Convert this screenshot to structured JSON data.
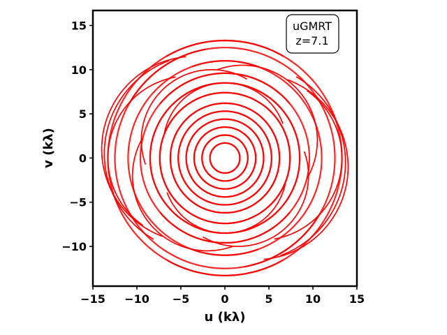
{
  "chart_data": {
    "type": "scatter",
    "title": "",
    "xlabel": "u (kλ)",
    "ylabel": "v (kλ)",
    "xlim": [
      -15,
      15
    ],
    "ylim": [
      -14.5,
      16.7
    ],
    "xticks": [
      -15,
      -10,
      -5,
      0,
      5,
      10,
      15
    ],
    "xtick_labels": [
      "−15",
      "−10",
      "−5",
      "0",
      "5",
      "10",
      "15"
    ],
    "yticks": [
      -10,
      -5,
      0,
      5,
      10,
      15
    ],
    "ytick_labels": [
      "−10",
      "−5",
      "0",
      "5",
      "10",
      "15"
    ],
    "grid": false,
    "color": "#ff0000",
    "annotation": {
      "line1": "uGMRT",
      "line2": "z=7.1",
      "position": "top-right"
    },
    "series": [
      {
        "description": "uv-coverage tracks (elliptical arcs, mirrored about origin)",
        "tracks": [
          {
            "center": [
              0,
              0
            ],
            "radius": 13.3,
            "start_deg": 60,
            "end_deg": 300
          },
          {
            "center": [
              0,
              0
            ],
            "radius": 12.5,
            "start_deg": 100,
            "end_deg": 330
          },
          {
            "center": [
              0,
              0
            ],
            "radius": 11.0,
            "start_deg": 70,
            "end_deg": 290
          },
          {
            "center": [
              0,
              0
            ],
            "radius": 9.6,
            "start_deg": 40,
            "end_deg": 320
          },
          {
            "center": [
              0,
              0
            ],
            "radius": 8.5,
            "start_deg": 0,
            "end_deg": 360
          },
          {
            "center": [
              0,
              0
            ],
            "radius": 7.4,
            "start_deg": 0,
            "end_deg": 360
          },
          {
            "center": [
              0,
              0
            ],
            "radius": 6.2,
            "start_deg": 0,
            "end_deg": 360
          },
          {
            "center": [
              0,
              0
            ],
            "radius": 5.3,
            "start_deg": 0,
            "end_deg": 360
          },
          {
            "center": [
              0,
              0
            ],
            "radius": 4.4,
            "start_deg": 0,
            "end_deg": 360
          },
          {
            "center": [
              0,
              0
            ],
            "radius": 3.5,
            "start_deg": 0,
            "end_deg": 360
          },
          {
            "center": [
              0,
              0
            ],
            "radius": 2.6,
            "start_deg": 0,
            "end_deg": 360
          },
          {
            "center": [
              0,
              0
            ],
            "radius": 1.7,
            "start_deg": 0,
            "end_deg": 360
          },
          {
            "center": [
              -3.5,
              1.0
            ],
            "radius": 10.5,
            "start_deg": 95,
            "end_deg": 250
          },
          {
            "center": [
              -2.5,
              0.5
            ],
            "radius": 11.2,
            "start_deg": 110,
            "end_deg": 240
          },
          {
            "center": [
              -4.0,
              0.0
            ],
            "radius": 9.3,
            "start_deg": 100,
            "end_deg": 235
          },
          {
            "center": [
              3.5,
              -1.0
            ],
            "radius": 10.5,
            "start_deg": 275,
            "end_deg": 430
          },
          {
            "center": [
              2.5,
              -0.5
            ],
            "radius": 11.2,
            "start_deg": 290,
            "end_deg": 420
          },
          {
            "center": [
              4.0,
              0.0
            ],
            "radius": 9.3,
            "start_deg": 280,
            "end_deg": 415
          },
          {
            "center": [
              -1.5,
              2.0
            ],
            "radius": 8.0,
            "start_deg": 60,
            "end_deg": 200
          },
          {
            "center": [
              1.5,
              -2.0
            ],
            "radius": 8.0,
            "start_deg": 240,
            "end_deg": 380
          },
          {
            "center": [
              -2.0,
              -2.0
            ],
            "radius": 8.5,
            "start_deg": 150,
            "end_deg": 290
          },
          {
            "center": [
              2.0,
              2.0
            ],
            "radius": 8.5,
            "start_deg": 330,
            "end_deg": 470
          },
          {
            "center": [
              0,
              1.5
            ],
            "radius": 7.0,
            "start_deg": 20,
            "end_deg": 170
          },
          {
            "center": [
              0,
              -1.5
            ],
            "radius": 7.0,
            "start_deg": 200,
            "end_deg": 350
          }
        ]
      }
    ]
  }
}
